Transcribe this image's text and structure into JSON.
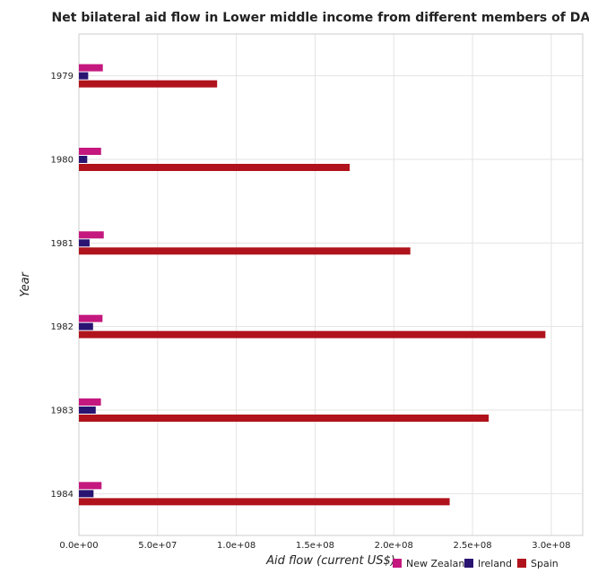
{
  "chart_data": {
    "type": "bar",
    "orientation": "horizontal",
    "title": "Net bilateral aid flow in Lower middle income from different members of DAC",
    "xlabel": "Aid flow (current US$)",
    "ylabel": "Year",
    "categories": [
      "1979",
      "1980",
      "1981",
      "1982",
      "1983",
      "1984"
    ],
    "xlim": [
      0,
      320000000
    ],
    "xticks": [
      0,
      50000000,
      100000000,
      150000000,
      200000000,
      250000000,
      300000000
    ],
    "xtick_labels": [
      "0.0e+00",
      "5.0e+07",
      "1.0e+08",
      "1.5e+08",
      "2.0e+08",
      "2.5e+08",
      "3.0e+08"
    ],
    "grid": true,
    "legend_position": "bottom-right",
    "series": [
      {
        "name": "New Zealand",
        "color": "#c4187e",
        "values": [
          15200000,
          14100000,
          15800000,
          15000000,
          14000000,
          14400000
        ]
      },
      {
        "name": "Ireland",
        "color": "#2a1472",
        "values": [
          5900000,
          5300000,
          6800000,
          9000000,
          10700000,
          9300000
        ]
      },
      {
        "name": "Spain",
        "color": "#b0131c",
        "values": [
          87800000,
          172000000,
          210500000,
          296300000,
          260300000,
          235500000
        ]
      }
    ]
  }
}
